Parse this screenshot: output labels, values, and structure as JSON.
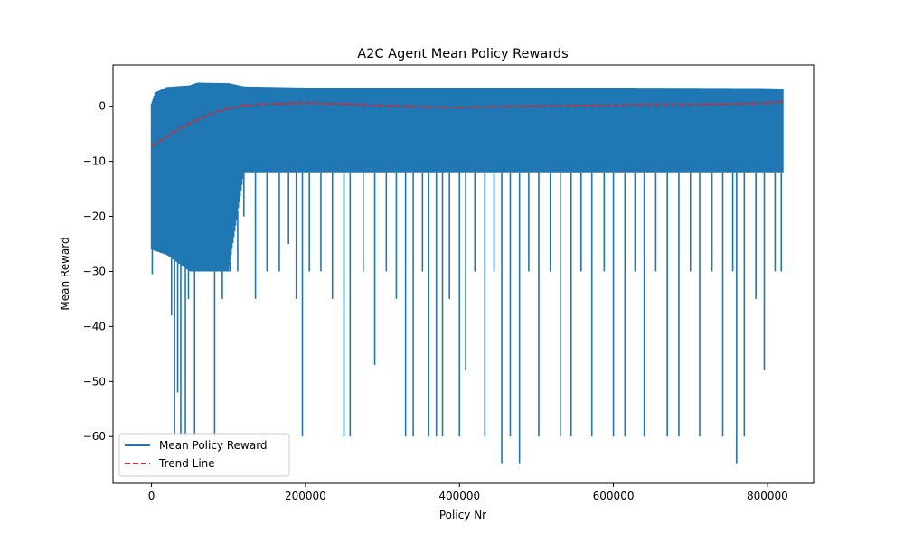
{
  "chart_data": {
    "type": "line",
    "title": "A2C Agent Mean Policy Rewards",
    "xlabel": "Policy Nr",
    "ylabel": "Mean Reward",
    "xlim": [
      -50000,
      860000
    ],
    "ylim": [
      -68.5,
      7.5
    ],
    "xticks": [
      0,
      200000,
      400000,
      600000,
      800000
    ],
    "yticks": [
      0,
      -10,
      -20,
      -30,
      -40,
      -50,
      -60
    ],
    "grid": false,
    "legend_position": "lower-left",
    "series": [
      {
        "name": "Mean Policy Reward",
        "color": "#1f77b4",
        "style": "solid",
        "x_range": [
          0,
          820000
        ],
        "band_top": [
          [
            0,
            0.5
          ],
          [
            5000,
            2.5
          ],
          [
            20000,
            3.5
          ],
          [
            50000,
            3.8
          ],
          [
            60000,
            4.3
          ],
          [
            100000,
            4.2
          ],
          [
            120000,
            3.6
          ],
          [
            200000,
            3.4
          ],
          [
            400000,
            3.4
          ],
          [
            600000,
            3.4
          ],
          [
            800000,
            3.3
          ],
          [
            820000,
            3.2
          ]
        ],
        "band_bottom": [
          [
            0,
            -26
          ],
          [
            20000,
            -27
          ],
          [
            50000,
            -30
          ],
          [
            100000,
            -30
          ],
          [
            120000,
            -12
          ],
          [
            400000,
            -12
          ],
          [
            600000,
            -12
          ],
          [
            800000,
            -12
          ],
          [
            820000,
            -12
          ]
        ],
        "spikes": [
          [
            1000,
            -30.5
          ],
          [
            12000,
            -26
          ],
          [
            26000,
            -38
          ],
          [
            30000,
            -60
          ],
          [
            34000,
            -52
          ],
          [
            38000,
            -60
          ],
          [
            44000,
            -60
          ],
          [
            48000,
            -35
          ],
          [
            56000,
            -60
          ],
          [
            62000,
            -30
          ],
          [
            68000,
            -30
          ],
          [
            74000,
            -30
          ],
          [
            82000,
            -60
          ],
          [
            92000,
            -35
          ],
          [
            102000,
            -30
          ],
          [
            112000,
            -30
          ],
          [
            120000,
            -20
          ],
          [
            135000,
            -35
          ],
          [
            150000,
            -30
          ],
          [
            166000,
            -30
          ],
          [
            178000,
            -25
          ],
          [
            188000,
            -35
          ],
          [
            196000,
            -60
          ],
          [
            205000,
            -30
          ],
          [
            220000,
            -30
          ],
          [
            235000,
            -35
          ],
          [
            250000,
            -60
          ],
          [
            258000,
            -60
          ],
          [
            275000,
            -30
          ],
          [
            290000,
            -47
          ],
          [
            305000,
            -30
          ],
          [
            318000,
            -35
          ],
          [
            330000,
            -60
          ],
          [
            340000,
            -60
          ],
          [
            352000,
            -30
          ],
          [
            360000,
            -60
          ],
          [
            370000,
            -60
          ],
          [
            378000,
            -60
          ],
          [
            387000,
            -35
          ],
          [
            400000,
            -60
          ],
          [
            408000,
            -48
          ],
          [
            420000,
            -30
          ],
          [
            433000,
            -60
          ],
          [
            445000,
            -30
          ],
          [
            455000,
            -65
          ],
          [
            466000,
            -60
          ],
          [
            478000,
            -65
          ],
          [
            490000,
            -30
          ],
          [
            503000,
            -60
          ],
          [
            518000,
            -30
          ],
          [
            531000,
            -60
          ],
          [
            545000,
            -60
          ],
          [
            558000,
            -30
          ],
          [
            572000,
            -60
          ],
          [
            588000,
            -30
          ],
          [
            600000,
            -60
          ],
          [
            615000,
            -60
          ],
          [
            628000,
            -30
          ],
          [
            640000,
            -60
          ],
          [
            655000,
            -30
          ],
          [
            670000,
            -60
          ],
          [
            685000,
            -60
          ],
          [
            700000,
            -30
          ],
          [
            712000,
            -60
          ],
          [
            728000,
            -30
          ],
          [
            742000,
            -60
          ],
          [
            755000,
            -30
          ],
          [
            760000,
            -65
          ],
          [
            770000,
            -60
          ],
          [
            785000,
            -35
          ],
          [
            796000,
            -48
          ],
          [
            810000,
            -30
          ],
          [
            818000,
            -30
          ]
        ]
      },
      {
        "name": "Trend Line",
        "color": "#d62728",
        "style": "dashed",
        "points": [
          [
            0,
            -7.3
          ],
          [
            20000,
            -5.5
          ],
          [
            40000,
            -3.8
          ],
          [
            60000,
            -2.4
          ],
          [
            80000,
            -1.2
          ],
          [
            100000,
            -0.4
          ],
          [
            120000,
            0.1
          ],
          [
            150000,
            0.4
          ],
          [
            200000,
            0.6
          ],
          [
            250000,
            0.4
          ],
          [
            300000,
            0.1
          ],
          [
            350000,
            -0.1
          ],
          [
            400000,
            -0.2
          ],
          [
            450000,
            -0.1
          ],
          [
            500000,
            0.0
          ],
          [
            550000,
            0.1
          ],
          [
            600000,
            0.2
          ],
          [
            650000,
            0.3
          ],
          [
            700000,
            0.3
          ],
          [
            750000,
            0.4
          ],
          [
            800000,
            0.6
          ],
          [
            820000,
            0.8
          ]
        ]
      }
    ]
  }
}
